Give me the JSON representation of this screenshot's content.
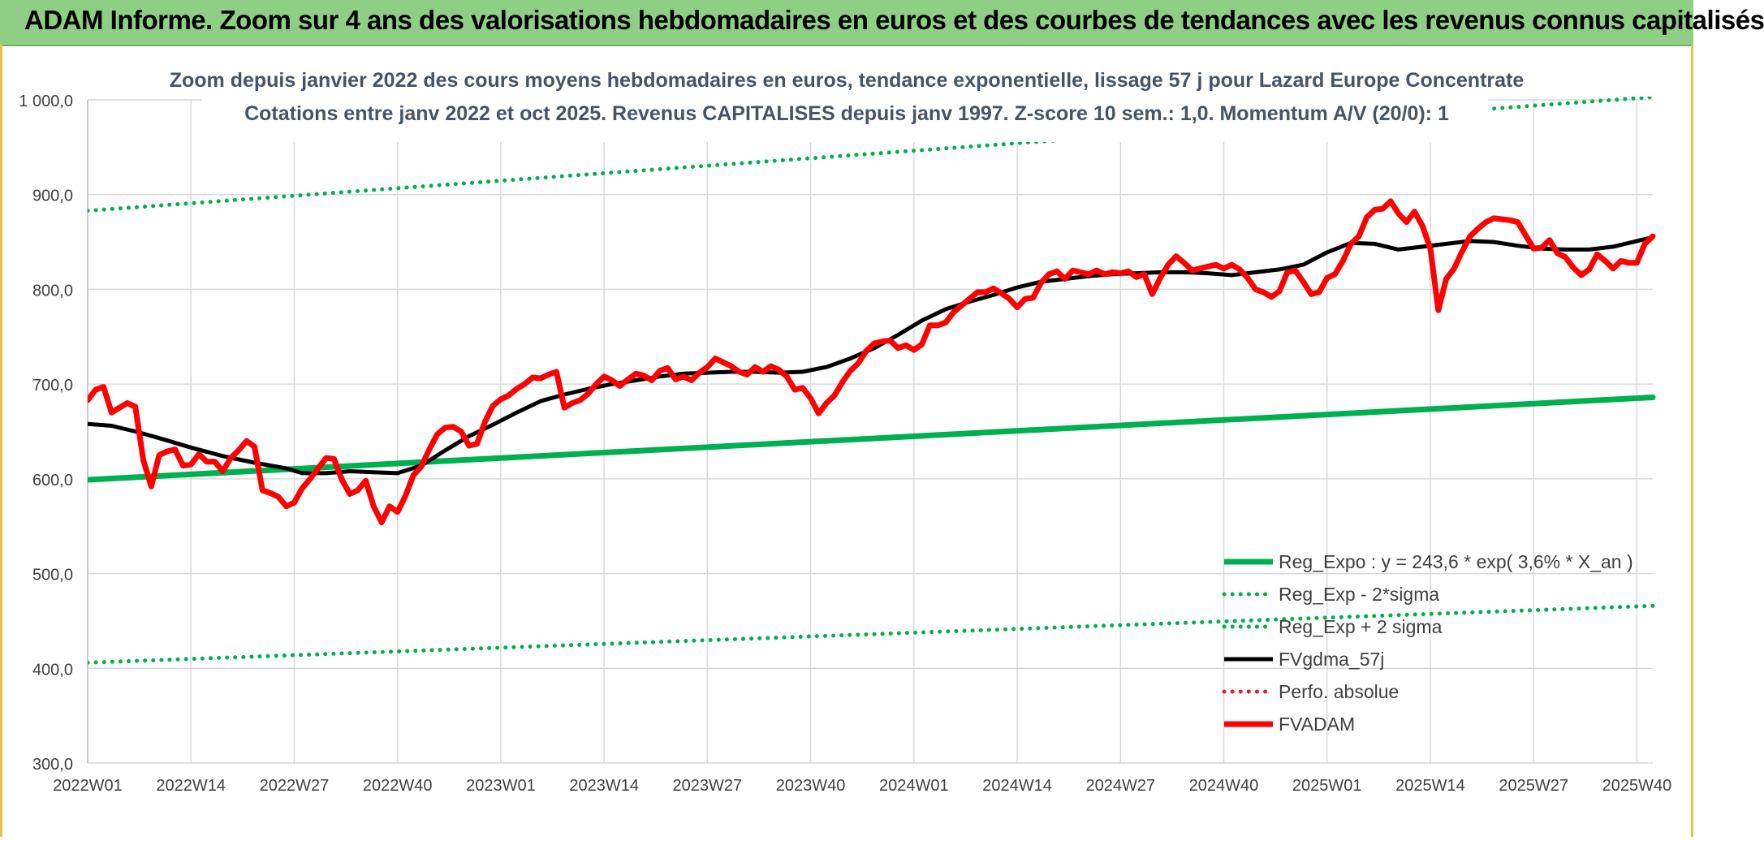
{
  "banner": {
    "title": "ADAM Informe. Zoom sur 4 ans des valorisations hebdomadaires en euros et des courbes de tendances avec les revenus connus capitalisés"
  },
  "colors": {
    "banner_bg": "#8fce85",
    "reg_expo": "#00b050",
    "fvgdma": "#000000",
    "fvadam": "#ff0000",
    "perfo": "#e02020",
    "grid": "#d9d9d9",
    "axis_text": "#404040",
    "title_text": "#44546a"
  },
  "chart_data": {
    "type": "line",
    "title": "Zoom depuis janvier 2022 des cours moyens hebdomadaires en euros, tendance exponentielle, lissage 57 j pour Lazard Europe Concentrate",
    "subtitle": "Cotations entre janv 2022 et oct 2025. Revenus CAPITALISES depuis janv 1997. Z-score 10 sem.: 1,0. Momentum A/V (20/0): 1",
    "xlabel": "",
    "ylabel": "",
    "ylim": [
      300,
      1000
    ],
    "yticks": [
      300,
      400,
      500,
      600,
      700,
      800,
      900,
      1000
    ],
    "ytick_labels": [
      "300,0",
      "400,0",
      "500,0",
      "600,0",
      "700,0",
      "800,0",
      "900,0",
      "1 000,0"
    ],
    "x_week_range": [
      0,
      197
    ],
    "xticks": [
      0,
      13,
      26,
      39,
      52,
      65,
      78,
      91,
      104,
      117,
      130,
      143,
      156,
      169,
      182,
      195
    ],
    "xtick_labels": [
      "2022W01",
      "2022W14",
      "2022W27",
      "2022W40",
      "2023W01",
      "2023W14",
      "2023W27",
      "2023W40",
      "2024W01",
      "2024W14",
      "2024W27",
      "2024W40",
      "2025W01",
      "2025W14",
      "2025W27",
      "2025W40"
    ],
    "grid": true,
    "legend_position": "bottom-right",
    "series": [
      {
        "name": "Reg_Expo : y = 243,6 * exp( 3,6% *  X_an )",
        "style": "solid-thick",
        "x": [
          0,
          197
        ],
        "values": [
          599,
          686
        ]
      },
      {
        "name": "Reg_Exp - 2*sigma",
        "style": "dotted",
        "x": [
          0,
          197
        ],
        "values": [
          406,
          466
        ]
      },
      {
        "name": "Reg_Exp + 2 sigma",
        "style": "dotted",
        "x": [
          0,
          197
        ],
        "values": [
          883,
          1003
        ]
      },
      {
        "name": "FVgdma_57j",
        "style": "solid",
        "x": [
          0,
          3,
          6,
          9,
          13,
          17,
          21,
          25,
          27,
          30,
          33,
          36,
          39,
          42,
          45,
          48,
          51,
          54,
          57,
          60,
          63,
          66,
          69,
          72,
          75,
          78,
          81,
          84,
          87,
          90,
          93,
          96,
          99,
          102,
          105,
          108,
          111,
          114,
          117,
          120,
          123,
          126,
          129,
          132,
          135,
          138,
          141,
          144,
          147,
          150,
          153,
          156,
          159,
          162,
          165,
          168,
          171,
          174,
          177,
          180,
          183,
          186,
          189,
          192,
          195,
          197
        ],
        "values": [
          658,
          656,
          650,
          643,
          633,
          624,
          617,
          611,
          606,
          606,
          608,
          607,
          606,
          614,
          630,
          645,
          657,
          670,
          682,
          689,
          695,
          700,
          704,
          708,
          711,
          712,
          713,
          713,
          712,
          713,
          718,
          727,
          738,
          752,
          767,
          779,
          787,
          794,
          802,
          808,
          811,
          814,
          816,
          817,
          818,
          818,
          817,
          815,
          818,
          821,
          826,
          839,
          849,
          848,
          842,
          845,
          848,
          851,
          850,
          846,
          843,
          842,
          842,
          845,
          851,
          855
        ]
      },
      {
        "name": "Perfo. absolue",
        "style": "dotted",
        "x": [],
        "values": []
      },
      {
        "name": "FVADAM",
        "style": "solid-thick",
        "x": [
          0,
          1,
          2,
          3,
          4,
          5,
          6,
          7,
          8,
          9,
          10,
          11,
          12,
          13,
          14,
          15,
          16,
          17,
          18,
          19,
          20,
          21,
          22,
          23,
          24,
          25,
          26,
          27,
          28,
          29,
          30,
          31,
          32,
          33,
          34,
          35,
          36,
          37,
          38,
          39,
          40,
          41,
          42,
          43,
          44,
          45,
          46,
          47,
          48,
          49,
          50,
          51,
          52,
          53,
          54,
          55,
          56,
          57,
          58,
          59,
          60,
          61,
          62,
          63,
          64,
          65,
          66,
          67,
          68,
          69,
          70,
          71,
          72,
          73,
          74,
          75,
          76,
          77,
          78,
          79,
          80,
          81,
          82,
          83,
          84,
          85,
          86,
          87,
          88,
          89,
          90,
          91,
          92,
          93,
          94,
          95,
          96,
          97,
          98,
          99,
          100,
          101,
          102,
          103,
          104,
          105,
          106,
          107,
          108,
          109,
          110,
          111,
          112,
          113,
          114,
          115,
          116,
          117,
          118,
          119,
          120,
          121,
          122,
          123,
          124,
          125,
          126,
          127,
          128,
          129,
          130,
          131,
          132,
          133,
          134,
          135,
          136,
          137,
          138,
          139,
          140,
          141,
          142,
          143,
          144,
          145,
          146,
          147,
          148,
          149,
          150,
          151,
          152,
          153,
          154,
          155,
          156,
          157,
          158,
          159,
          160,
          161,
          162,
          163,
          164,
          165,
          166,
          167,
          168,
          169,
          170,
          171,
          172,
          173,
          174,
          175,
          176,
          177,
          178,
          179,
          180,
          181,
          182,
          183,
          184,
          185,
          186,
          187,
          188,
          189,
          190,
          191,
          192,
          193,
          194,
          195,
          196,
          197
        ],
        "values": [
          683,
          694,
          697,
          670,
          675,
          680,
          676,
          620,
          592,
          625,
          629,
          631,
          614,
          615,
          626,
          618,
          618,
          608,
          622,
          630,
          640,
          634,
          588,
          585,
          581,
          571,
          575,
          590,
          600,
          611,
          622,
          621,
          599,
          584,
          588,
          598,
          571,
          554,
          571,
          565,
          582,
          604,
          613,
          631,
          647,
          654,
          655,
          650,
          635,
          637,
          660,
          677,
          684,
          688,
          695,
          700,
          707,
          706,
          710,
          713,
          675,
          680,
          683,
          690,
          700,
          708,
          704,
          698,
          705,
          711,
          709,
          704,
          714,
          717,
          705,
          708,
          704,
          712,
          718,
          727,
          723,
          719,
          713,
          710,
          718,
          713,
          719,
          715,
          708,
          694,
          696,
          685,
          669,
          680,
          688,
          702,
          714,
          722,
          735,
          743,
          745,
          746,
          738,
          741,
          736,
          742,
          762,
          762,
          765,
          776,
          783,
          790,
          797,
          797,
          801,
          796,
          790,
          781,
          790,
          791,
          807,
          816,
          819,
          811,
          820,
          818,
          816,
          820,
          816,
          818,
          817,
          819,
          813,
          816,
          795,
          812,
          826,
          835,
          828,
          820,
          822,
          824,
          826,
          822,
          826,
          821,
          812,
          800,
          797,
          792,
          798,
          818,
          820,
          808,
          795,
          797,
          812,
          816,
          830,
          848,
          856,
          876,
          884,
          885,
          893,
          880,
          871,
          882,
          867,
          843,
          778,
          811,
          822,
          840,
          856,
          864,
          871,
          875,
          874,
          873,
          871,
          857,
          843,
          844,
          852,
          838,
          834,
          823,
          815,
          821,
          837,
          830,
          822,
          830,
          828,
          828,
          848,
          856
        ]
      }
    ]
  }
}
